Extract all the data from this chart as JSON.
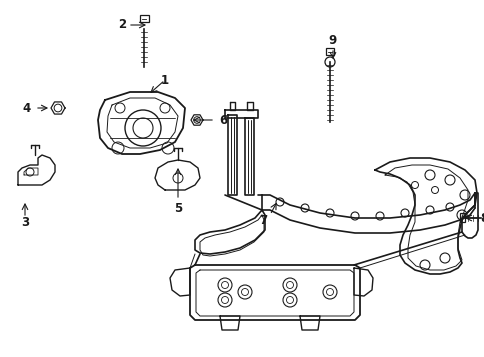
{
  "background_color": "#ffffff",
  "line_color": "#1a1a1a",
  "figsize": [
    4.85,
    3.57
  ],
  "dpi": 100,
  "parts": {
    "label_fontsize": 8.5,
    "label_fontweight": "bold"
  }
}
